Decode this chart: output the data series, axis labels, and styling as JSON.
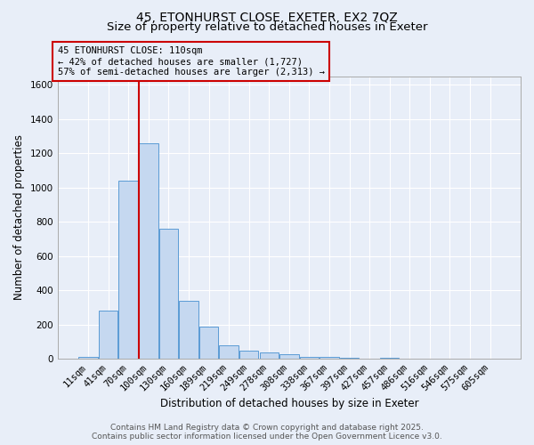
{
  "title_line1": "45, ETONHURST CLOSE, EXETER, EX2 7QZ",
  "title_line2": "Size of property relative to detached houses in Exeter",
  "xlabel": "Distribution of detached houses by size in Exeter",
  "ylabel": "Number of detached properties",
  "categories": [
    "11sqm",
    "41sqm",
    "70sqm",
    "100sqm",
    "130sqm",
    "160sqm",
    "189sqm",
    "219sqm",
    "249sqm",
    "278sqm",
    "308sqm",
    "338sqm",
    "367sqm",
    "397sqm",
    "427sqm",
    "457sqm",
    "486sqm",
    "516sqm",
    "546sqm",
    "575sqm",
    "605sqm"
  ],
  "values": [
    10,
    280,
    1040,
    1260,
    760,
    340,
    185,
    80,
    48,
    37,
    25,
    12,
    10,
    5,
    2,
    5,
    2,
    1,
    1,
    1,
    1
  ],
  "bar_color": "#c5d8f0",
  "bar_edge_color": "#5b9bd5",
  "bg_color": "#e8eef8",
  "grid_color": "#ffffff",
  "vline_color": "#cc0000",
  "vline_index": 3,
  "annotation_text_line1": "45 ETONHURST CLOSE: 110sqm",
  "annotation_text_line2": "← 42% of detached houses are smaller (1,727)",
  "annotation_text_line3": "57% of semi-detached houses are larger (2,313) →",
  "ylim": [
    0,
    1650
  ],
  "yticks": [
    0,
    200,
    400,
    600,
    800,
    1000,
    1200,
    1400,
    1600
  ],
  "footer_text": "Contains HM Land Registry data © Crown copyright and database right 2025.\nContains public sector information licensed under the Open Government Licence v3.0.",
  "title_fontsize": 10,
  "subtitle_fontsize": 9.5,
  "axis_label_fontsize": 8.5,
  "tick_fontsize": 7.5,
  "annotation_fontsize": 7.5,
  "footer_fontsize": 6.5
}
